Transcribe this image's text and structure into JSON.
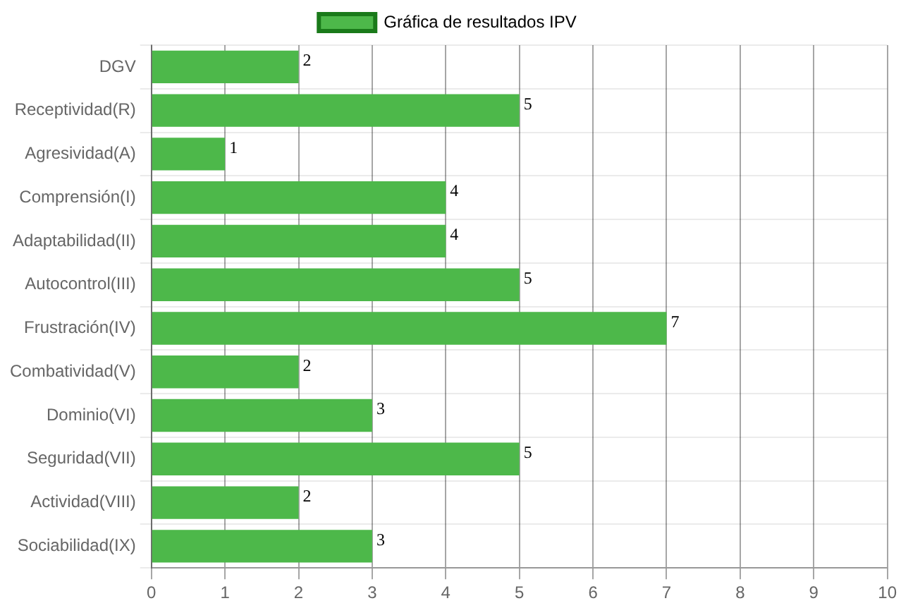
{
  "chart_data": {
    "type": "bar",
    "orientation": "horizontal",
    "categories": [
      "DGV",
      "Receptividad(R)",
      "Agresividad(A)",
      "Comprensión(I)",
      "Adaptabilidad(II)",
      "Autocontrol(III)",
      "Frustración(IV)",
      "Combatividad(V)",
      "Dominio(VI)",
      "Seguridad(VII)",
      "Actividad(VIII)",
      "Sociabilidad(IX)"
    ],
    "series": [
      {
        "name": "Gráfica de resultados IPV",
        "color": "#4db84a",
        "values": [
          2,
          5,
          1,
          4,
          4,
          5,
          7,
          2,
          3,
          5,
          2,
          3
        ]
      }
    ],
    "xlim": [
      0,
      10
    ],
    "xticks": [
      0,
      1,
      2,
      3,
      4,
      5,
      6,
      7,
      8,
      9,
      10
    ],
    "grid": true,
    "legend": "top",
    "data_labels": true
  }
}
